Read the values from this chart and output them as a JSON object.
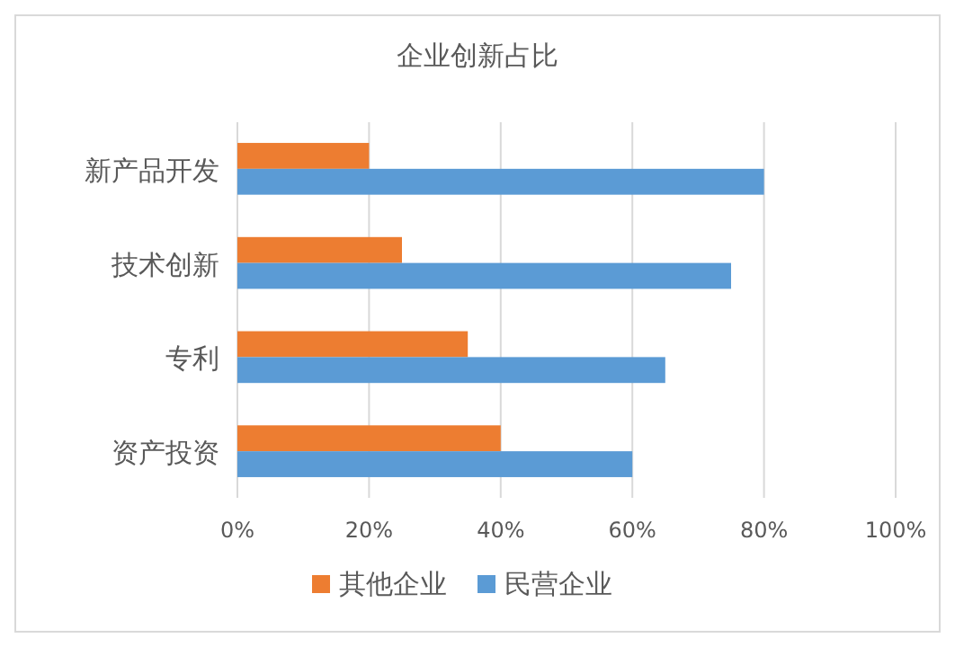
{
  "chart_data": {
    "type": "bar",
    "orientation": "horizontal",
    "title": "企业创新占比",
    "categories": [
      "新产品开发",
      "技术创新",
      "专利",
      "资产投资"
    ],
    "series": [
      {
        "name": "其他企业",
        "color": "#ed7d31",
        "values": [
          20,
          25,
          35,
          40
        ]
      },
      {
        "name": "民营企业",
        "color": "#5b9bd5",
        "values": [
          80,
          75,
          65,
          60
        ]
      }
    ],
    "xlim": [
      0,
      100
    ],
    "xticks": [
      {
        "value": 0,
        "label": "0%"
      },
      {
        "value": 20,
        "label": "20%"
      },
      {
        "value": 40,
        "label": "40%"
      },
      {
        "value": 60,
        "label": "60%"
      },
      {
        "value": 80,
        "label": "80%"
      },
      {
        "value": 100,
        "label": "100%"
      }
    ],
    "grid": "x",
    "legend": "bottom"
  }
}
